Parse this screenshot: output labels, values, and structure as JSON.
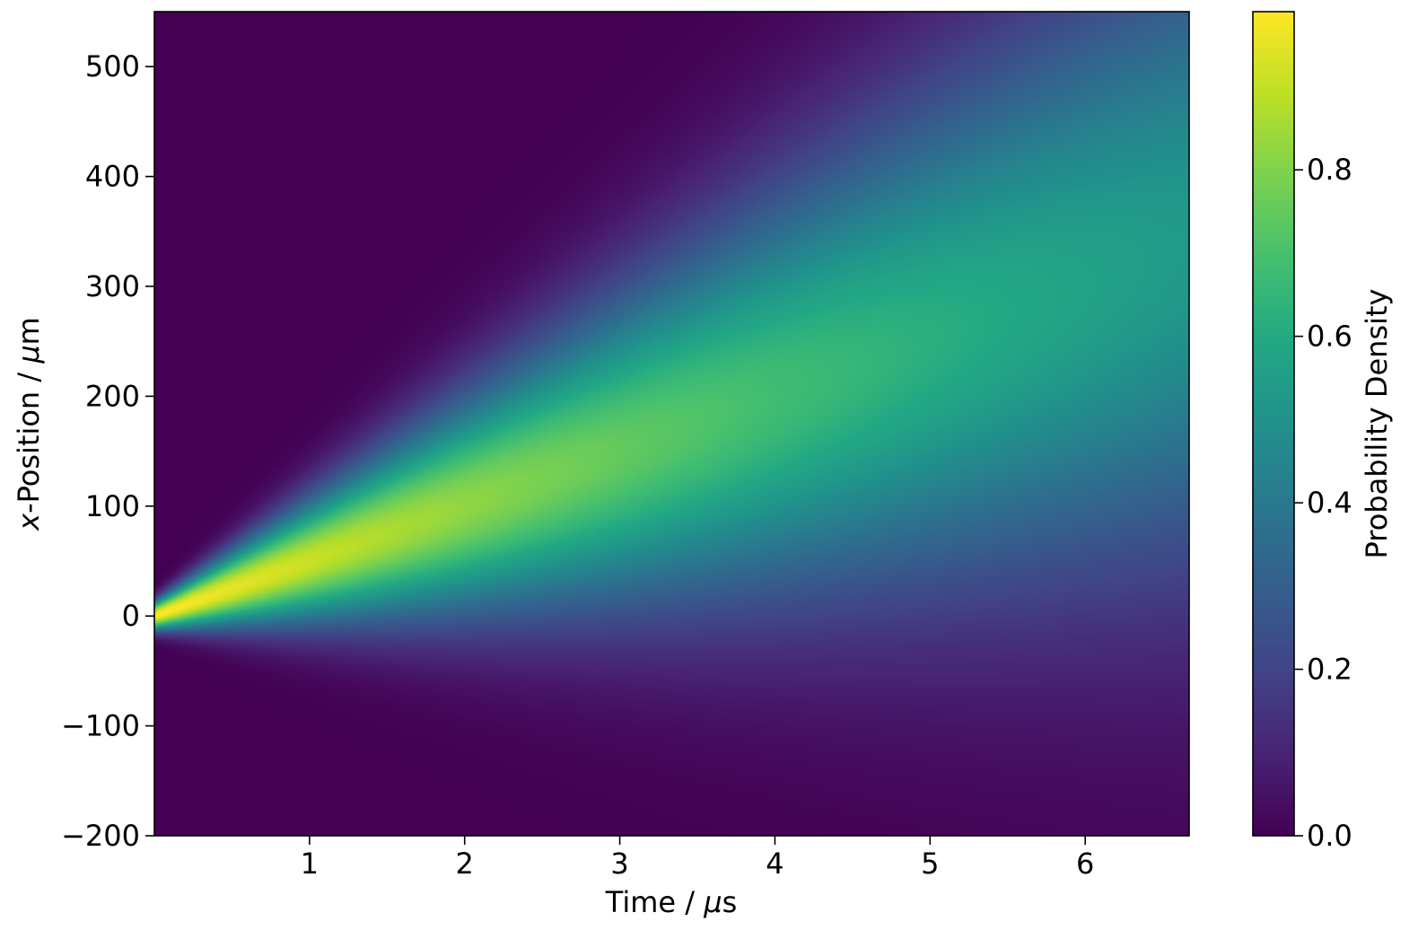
{
  "chart_data": {
    "type": "heatmap",
    "title": "",
    "xlabel": {
      "prefix": "Time / ",
      "unit_symbol": "μ",
      "unit_rest": "s"
    },
    "ylabel": {
      "var": "x",
      "middle": "-Position / ",
      "unit_symbol": "μ",
      "unit_rest": "m"
    },
    "xlim": [
      0,
      6.67
    ],
    "ylim": [
      -200,
      550
    ],
    "xticks": [
      1,
      2,
      3,
      4,
      5,
      6
    ],
    "xtick_labels": [
      "1",
      "2",
      "3",
      "4",
      "5",
      "6"
    ],
    "yticks": [
      -200,
      -100,
      0,
      100,
      200,
      300,
      400,
      500
    ],
    "ytick_labels": [
      "−200",
      "−100",
      "0",
      "100",
      "200",
      "300",
      "400",
      "500"
    ],
    "colorbar": {
      "label": "Probability Density",
      "range": [
        0,
        0.99
      ],
      "ticks": [
        0,
        0.2,
        0.4,
        0.6,
        0.8
      ],
      "tick_labels": [
        "0.0",
        "0.2",
        "0.4",
        "0.6",
        "0.8"
      ],
      "colormap": "viridis"
    },
    "density_peak_track": {
      "t": [
        0.05,
        1.0,
        2.0,
        3.0,
        4.0,
        5.0,
        6.0,
        6.67
      ],
      "x_peak": [
        2,
        60,
        125,
        175,
        230,
        275,
        310,
        330
      ],
      "peak_value": [
        0.99,
        0.9,
        0.8,
        0.72,
        0.65,
        0.6,
        0.56,
        0.53
      ]
    },
    "grid": false
  }
}
